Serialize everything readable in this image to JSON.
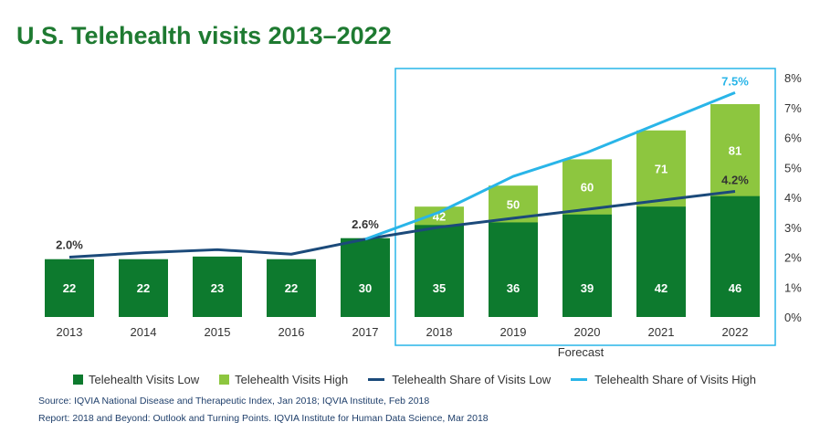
{
  "colors": {
    "title": "#1e7a31",
    "low_bar": "#0d7a2e",
    "high_bar": "#8dc63f",
    "low_line": "#1b4a7a",
    "high_line": "#29b5e8",
    "forecast_box": "#29b5e8",
    "source_text": "#1f3f6b"
  },
  "title": "U.S. Telehealth visits 2013–2022",
  "forecast_label": "Forecast",
  "chart_data": {
    "type": "bar",
    "title": "U.S. Telehealth visits 2013–2022",
    "categories": [
      "2013",
      "2014",
      "2015",
      "2016",
      "2017",
      "2018",
      "2019",
      "2020",
      "2021",
      "2022"
    ],
    "series": [
      {
        "name": "Telehealth Visits Low",
        "type": "bar",
        "axis": "left",
        "values": [
          22,
          22,
          23,
          22,
          30,
          35,
          36,
          39,
          42,
          46
        ]
      },
      {
        "name": "Telehealth Visits High",
        "type": "bar",
        "axis": "left",
        "values": [
          null,
          null,
          null,
          null,
          null,
          42,
          50,
          60,
          71,
          81
        ]
      },
      {
        "name": "Telehealth Share of Visits Low",
        "type": "line",
        "axis": "right",
        "values": [
          2.0,
          2.15,
          2.25,
          2.1,
          2.6,
          3.0,
          3.3,
          3.6,
          3.9,
          4.2
        ]
      },
      {
        "name": "Telehealth Share of Visits High",
        "type": "line",
        "axis": "right",
        "values": [
          null,
          null,
          null,
          null,
          2.6,
          3.5,
          4.7,
          5.5,
          6.5,
          7.5
        ]
      }
    ],
    "y2_ticks": [
      "0%",
      "1%",
      "2%",
      "3%",
      "4%",
      "5%",
      "6%",
      "7%",
      "8%"
    ],
    "y2lim": [
      0,
      8
    ],
    "annotations": [
      {
        "text": "2.0%",
        "at": "2013"
      },
      {
        "text": "2.6%",
        "at": "2017"
      },
      {
        "text": "4.2%",
        "at": "2022"
      },
      {
        "text": "7.5%",
        "at": "2022"
      }
    ],
    "forecast_range": [
      "2018",
      "2022"
    ],
    "grid": false,
    "legend_position": "bottom"
  },
  "legend": {
    "low_bar": "Telehealth Visits Low",
    "high_bar": "Telehealth Visits High",
    "low_line": "Telehealth Share of Visits Low",
    "high_line": "Telehealth Share of Visits High"
  },
  "source_line": "Source: IQVIA National Disease and Therapeutic Index, Jan 2018; IQVIA Institute, Feb 2018",
  "report_line": "Report: 2018 and Beyond: Outlook and Turning Points. IQVIA Institute for Human Data Science, Mar 2018"
}
